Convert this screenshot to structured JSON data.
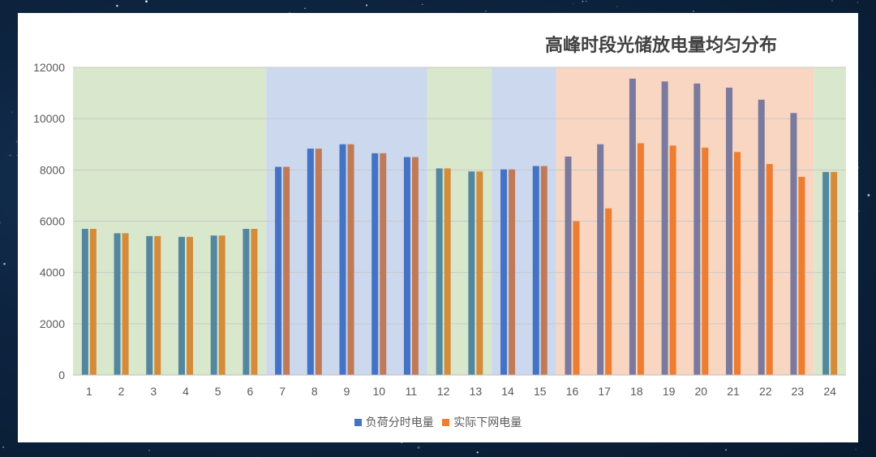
{
  "chart_data": {
    "type": "bar",
    "title": "高峰时段光储放电量均匀分布",
    "xlabel": "",
    "ylabel": "",
    "ylim": [
      0,
      12000
    ],
    "yticks": [
      0,
      2000,
      4000,
      6000,
      8000,
      10000,
      12000
    ],
    "grid": true,
    "legend_position": "bottom",
    "categories": [
      "1",
      "2",
      "3",
      "4",
      "5",
      "6",
      "7",
      "8",
      "9",
      "10",
      "11",
      "12",
      "13",
      "14",
      "15",
      "16",
      "17",
      "18",
      "19",
      "20",
      "21",
      "22",
      "23",
      "24"
    ],
    "series": [
      {
        "name": "负荷分时电量",
        "color": "#4472C4",
        "values": [
          5700,
          5530,
          5420,
          5390,
          5440,
          5700,
          8120,
          8830,
          9000,
          8650,
          8500,
          8060,
          7940,
          8020,
          8150,
          8520,
          9000,
          11560,
          11450,
          11370,
          11210,
          10740,
          10220,
          7920
        ]
      },
      {
        "name": "实际下网电量",
        "color": "#ED7D31",
        "values": [
          5700,
          5530,
          5420,
          5390,
          5440,
          5700,
          8120,
          8830,
          9000,
          8650,
          8500,
          8060,
          7940,
          8020,
          8150,
          6000,
          6500,
          9040,
          8950,
          8870,
          8700,
          8230,
          7730,
          7920
        ]
      }
    ],
    "background_bands": [
      {
        "from": 1,
        "to": 6,
        "color": "#D9E8CC"
      },
      {
        "from": 7,
        "to": 11,
        "color": "#CBD8EE"
      },
      {
        "from": 12,
        "to": 13,
        "color": "#D9E8CC"
      },
      {
        "from": 14,
        "to": 15,
        "color": "#CBD8EE"
      },
      {
        "from": 16,
        "to": 23,
        "color": "#F8D6C2"
      },
      {
        "from": 24,
        "to": 24,
        "color": "#D9E8CC"
      }
    ]
  }
}
